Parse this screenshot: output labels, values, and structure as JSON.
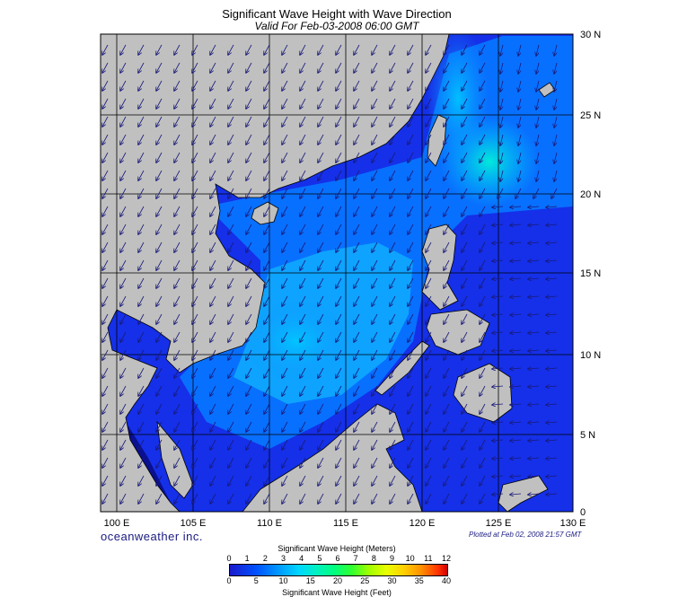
{
  "title": "Significant Wave Height with Wave Direction",
  "subtitle": "Valid For Feb-03-2008 06:00 GMT",
  "brand": "oceanweather inc.",
  "plotted": "Plotted at Feb 02, 2008 21:57 GMT",
  "lon_labels": [
    "100 E",
    "105 E",
    "110 E",
    "115 E",
    "120 E",
    "125 E",
    "130 E"
  ],
  "lat_labels": [
    "0",
    "5 N",
    "10 N",
    "15 N",
    "20 N",
    "25 N",
    "30 N"
  ],
  "colorbar": {
    "title_meters": "Significant Wave Height (Meters)",
    "title_feet": "Significant Wave Height (Feet)",
    "meters_ticks": [
      "0",
      "1",
      "2",
      "3",
      "4",
      "5",
      "6",
      "7",
      "8",
      "9",
      "10",
      "11",
      "12"
    ],
    "feet_ticks": [
      "0",
      "5",
      "10",
      "15",
      "20",
      "25",
      "30",
      "35",
      "40"
    ]
  },
  "colors": {
    "land": "#c0c0c0",
    "sea_low": "#1e28e6",
    "sea_mid": "#0a78ff",
    "sea_high": "#00d8e6",
    "arrow": "#1a1a7a"
  },
  "extent": {
    "lon": [
      99,
      130
    ],
    "lat": [
      0,
      30
    ]
  }
}
